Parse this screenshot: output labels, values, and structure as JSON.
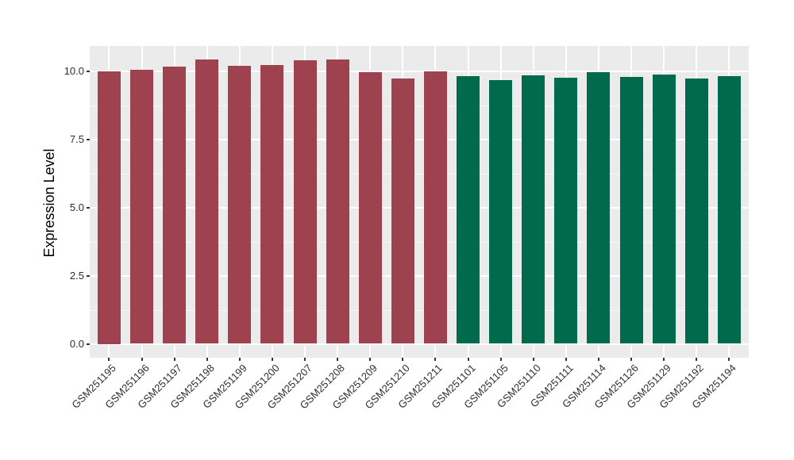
{
  "chart_data": {
    "type": "bar",
    "title": "",
    "xlabel": "",
    "ylabel": "Expression Level",
    "legend": "none",
    "grid": "on",
    "panel_background": "#EBEBEB",
    "gridline_color": "#ffffff",
    "ylim": [
      0,
      10.95
    ],
    "ytick_values": [
      0,
      2.5,
      5,
      7.5,
      10
    ],
    "ytick_labels": [
      "0.0",
      "2.5",
      "5.0",
      "7.5",
      "10.0"
    ],
    "minor_gridline_values": [
      1.25,
      3.75,
      6.25,
      8.75
    ],
    "group_colors": {
      "group1": "#9E4250",
      "group2": "#006A4C"
    },
    "bars": [
      {
        "category": "GSM251195",
        "value": 10.0,
        "group": "group1"
      },
      {
        "category": "GSM251196",
        "value": 10.06,
        "group": "group1"
      },
      {
        "category": "GSM251197",
        "value": 10.17,
        "group": "group1"
      },
      {
        "category": "GSM251198",
        "value": 10.45,
        "group": "group1"
      },
      {
        "category": "GSM251199",
        "value": 10.19,
        "group": "group1"
      },
      {
        "category": "GSM251200",
        "value": 10.24,
        "group": "group1"
      },
      {
        "category": "GSM251207",
        "value": 10.41,
        "group": "group1"
      },
      {
        "category": "GSM251208",
        "value": 10.43,
        "group": "group1"
      },
      {
        "category": "GSM251209",
        "value": 9.97,
        "group": "group1"
      },
      {
        "category": "GSM251210",
        "value": 9.73,
        "group": "group1"
      },
      {
        "category": "GSM251211",
        "value": 10.01,
        "group": "group1"
      },
      {
        "category": "GSM251101",
        "value": 9.82,
        "group": "group2"
      },
      {
        "category": "GSM251105",
        "value": 9.68,
        "group": "group2"
      },
      {
        "category": "GSM251110",
        "value": 9.85,
        "group": "group2"
      },
      {
        "category": "GSM251111",
        "value": 9.78,
        "group": "group2"
      },
      {
        "category": "GSM251114",
        "value": 9.97,
        "group": "group2"
      },
      {
        "category": "GSM251126",
        "value": 9.8,
        "group": "group2"
      },
      {
        "category": "GSM251129",
        "value": 9.89,
        "group": "group2"
      },
      {
        "category": "GSM251192",
        "value": 9.74,
        "group": "group2"
      },
      {
        "category": "GSM251194",
        "value": 9.82,
        "group": "group2"
      }
    ]
  }
}
